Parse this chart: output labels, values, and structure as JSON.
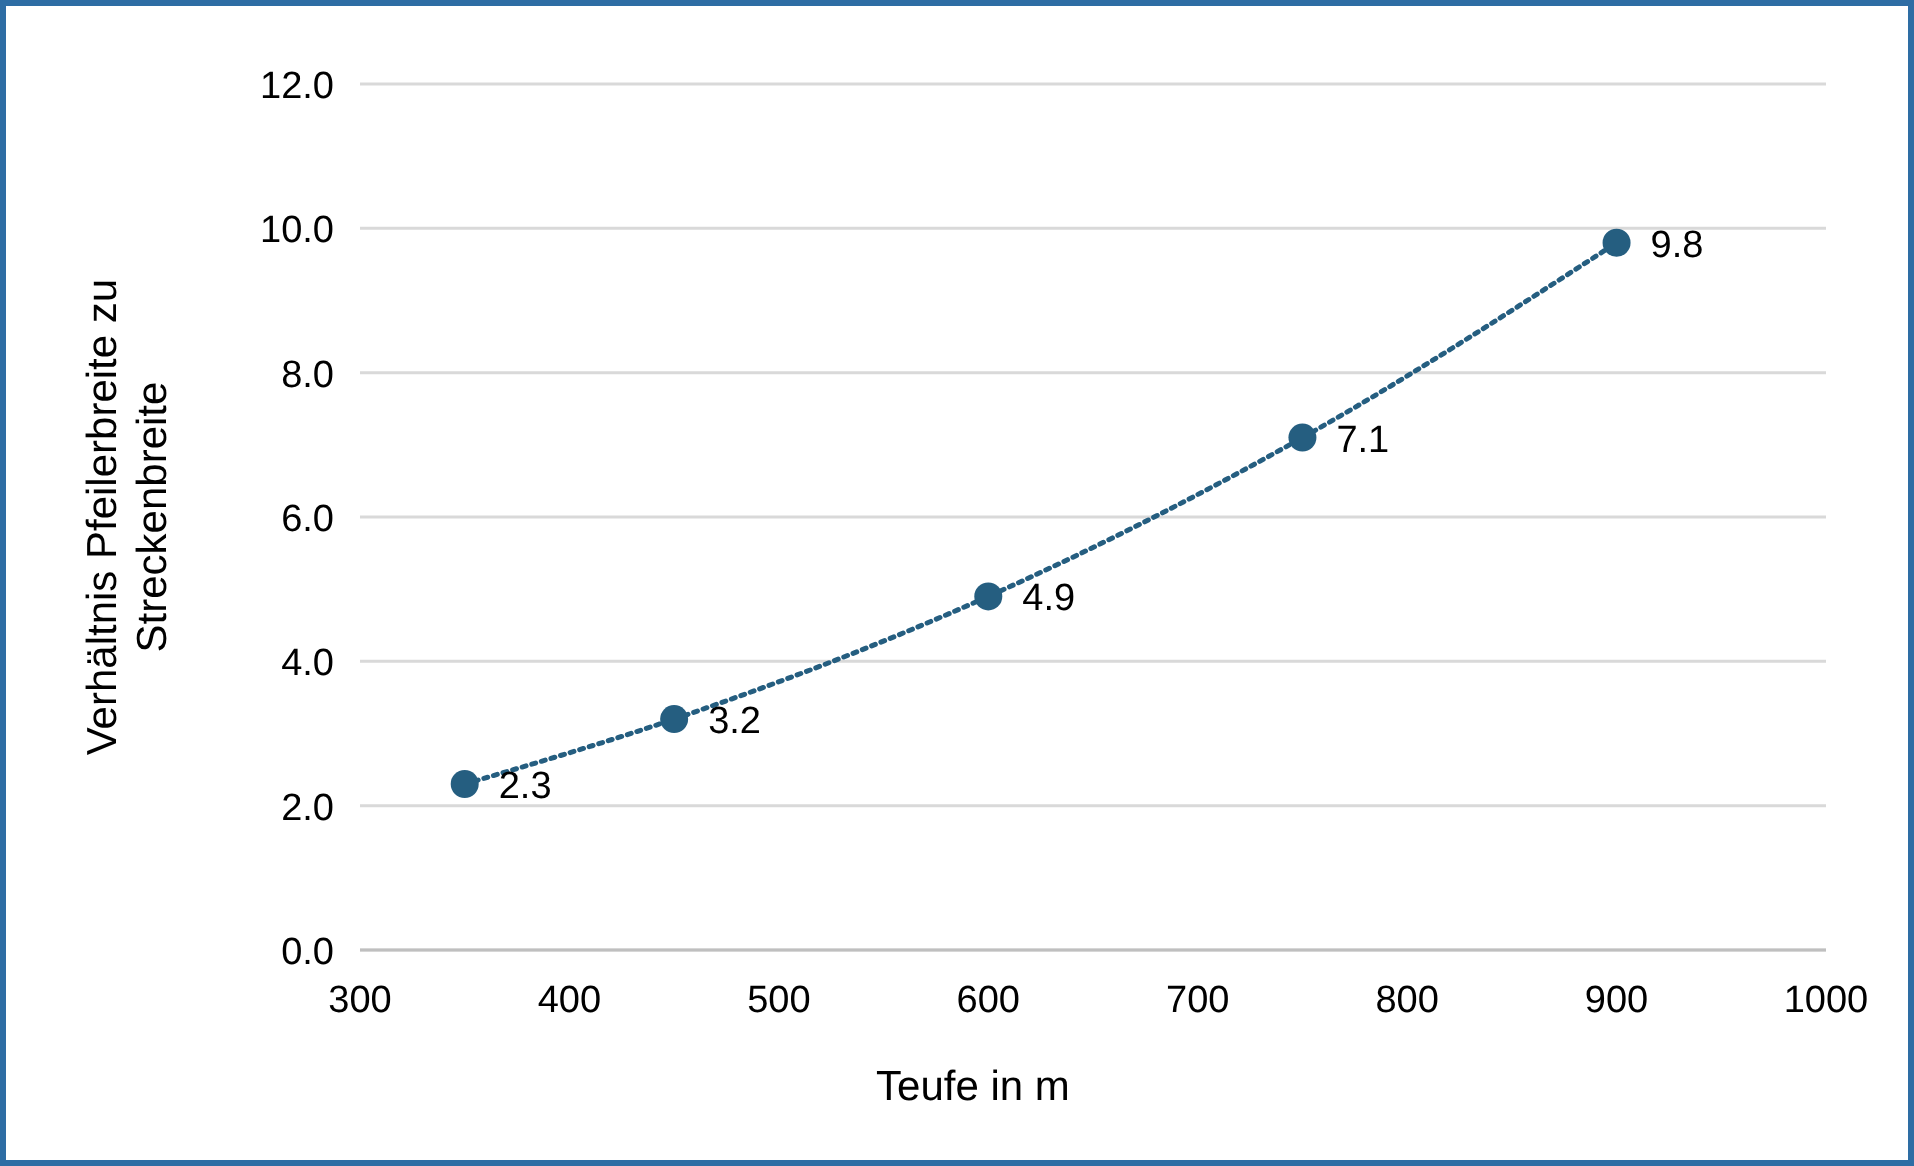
{
  "chart_data": {
    "type": "line",
    "xlabel": "Teufe in m",
    "ylabel": "Verhältnis Pfeilerbreite zu Streckenbreite",
    "x": [
      350,
      450,
      600,
      750,
      900
    ],
    "series": [
      {
        "color": "#255e80",
        "values": [
          2.3,
          3.2,
          4.9,
          7.1,
          9.8
        ]
      }
    ],
    "xlim": [
      300,
      1000
    ],
    "xticks": [
      300,
      400,
      500,
      600,
      700,
      800,
      900,
      1000
    ],
    "ylim": [
      0,
      12
    ],
    "yticks": [
      {
        "value": 0,
        "label": "0.0"
      },
      {
        "value": 2,
        "label": "2.0"
      },
      {
        "value": 4,
        "label": "4.0"
      },
      {
        "value": 6,
        "label": "6.0"
      },
      {
        "value": 8,
        "label": "8.0"
      },
      {
        "value": 10,
        "label": "10.0"
      },
      {
        "value": 12,
        "label": "12.0"
      }
    ],
    "grid": "y",
    "marker": "circle",
    "line_style": "dotted",
    "data_labels": true
  }
}
